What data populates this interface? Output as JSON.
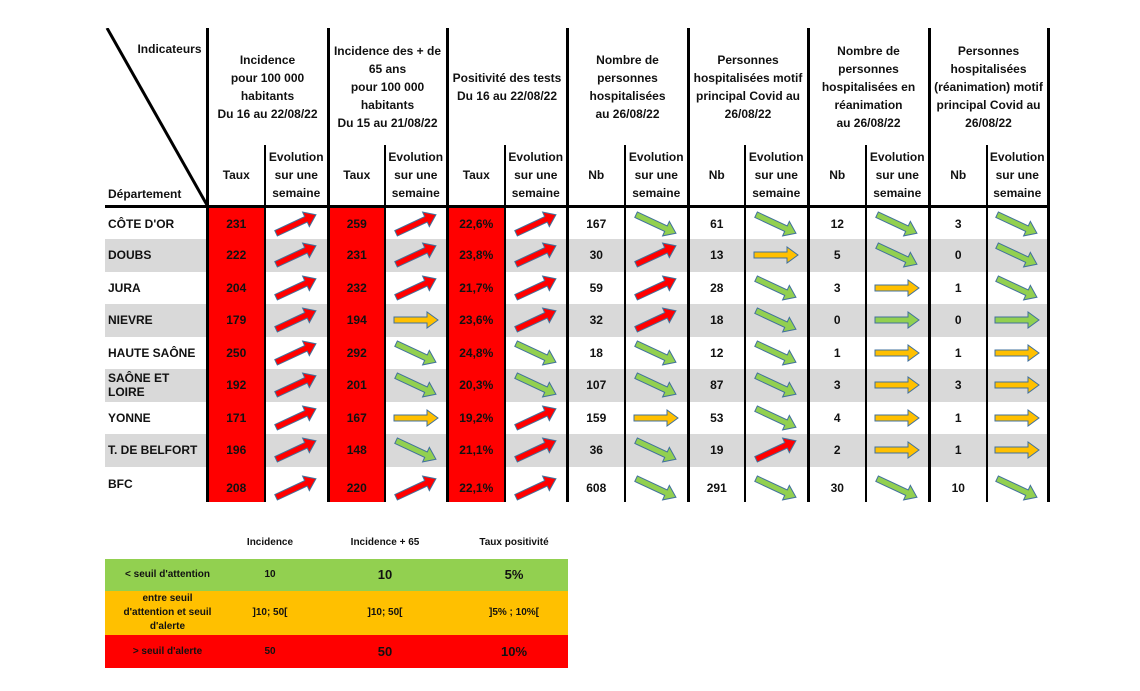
{
  "header": {
    "indicateurs": "Indicateurs",
    "departement": "Département",
    "groups": [
      {
        "title": [
          "Incidence",
          "pour 100 000",
          "habitants",
          "Du 16 au 22/08/22"
        ],
        "col1": "Taux",
        "col2": [
          "Evolution",
          "sur une",
          "semaine"
        ]
      },
      {
        "title": [
          "Incidence des + de",
          "65 ans",
          "pour 100 000",
          "habitants",
          "Du 15 au 21/08/22"
        ],
        "col1": "Taux",
        "col2": [
          "Evolution",
          "sur une",
          "semaine"
        ]
      },
      {
        "title": [
          "Positivité des tests",
          "Du 16 au 22/08/22"
        ],
        "col1": "Taux",
        "col2": [
          "Evolution",
          "sur une",
          "semaine"
        ]
      },
      {
        "title": [
          "Nombre de",
          "personnes",
          "hospitalisées",
          "au 26/08/22"
        ],
        "col1": "Nb",
        "col2": [
          "Evolution",
          "sur une",
          "semaine"
        ]
      },
      {
        "title": [
          "Personnes",
          "hospitalisées motif",
          "principal Covid au",
          "26/08/22"
        ],
        "col1": "Nb",
        "col2": [
          "Evolution",
          "sur une",
          "semaine"
        ]
      },
      {
        "title": [
          "Nombre de",
          "personnes",
          "hospitalisées en",
          "réanimation",
          "au 26/08/22"
        ],
        "col1": "Nb",
        "col2": [
          "Evolution",
          "sur une",
          "semaine"
        ]
      },
      {
        "title": [
          "Personnes",
          "hospitalisées",
          "(réanimation) motif",
          "principal Covid au",
          "26/08/22"
        ],
        "col1": "Nb",
        "col2": [
          "Evolution",
          "sur une",
          "semaine"
        ]
      }
    ]
  },
  "arrow_colors": {
    "up": "#ff0000",
    "down": "#92d050",
    "flat_yellow": "#ffc000",
    "flat_green": "#92d050",
    "outline": "#41719c"
  },
  "rows": [
    {
      "dept": "CÔTE D'OR",
      "cells": [
        [
          "231",
          "up"
        ],
        [
          "259",
          "up"
        ],
        [
          "22,6%",
          "up"
        ],
        [
          "167",
          "down"
        ],
        [
          "61",
          "down"
        ],
        [
          "12",
          "down"
        ],
        [
          "3",
          "down"
        ]
      ]
    },
    {
      "dept": "DOUBS",
      "cells": [
        [
          "222",
          "up"
        ],
        [
          "231",
          "up"
        ],
        [
          "23,8%",
          "up"
        ],
        [
          "30",
          "up"
        ],
        [
          "13",
          "flat_yellow"
        ],
        [
          "5",
          "down"
        ],
        [
          "0",
          "down"
        ]
      ]
    },
    {
      "dept": "JURA",
      "cells": [
        [
          "204",
          "up"
        ],
        [
          "232",
          "up"
        ],
        [
          "21,7%",
          "up"
        ],
        [
          "59",
          "up"
        ],
        [
          "28",
          "down"
        ],
        [
          "3",
          "flat_yellow"
        ],
        [
          "1",
          "down"
        ]
      ]
    },
    {
      "dept": "NIEVRE",
      "cells": [
        [
          "179",
          "up"
        ],
        [
          "194",
          "flat_yellow"
        ],
        [
          "23,6%",
          "up"
        ],
        [
          "32",
          "up"
        ],
        [
          "18",
          "down"
        ],
        [
          "0",
          "flat_green"
        ],
        [
          "0",
          "flat_green"
        ]
      ]
    },
    {
      "dept": "HAUTE SAÔNE",
      "cells": [
        [
          "250",
          "up"
        ],
        [
          "292",
          "down"
        ],
        [
          "24,8%",
          "down"
        ],
        [
          "18",
          "down"
        ],
        [
          "12",
          "down"
        ],
        [
          "1",
          "flat_yellow"
        ],
        [
          "1",
          "flat_yellow"
        ]
      ]
    },
    {
      "dept": "SAÔNE ET LOIRE",
      "cells": [
        [
          "192",
          "up"
        ],
        [
          "201",
          "down"
        ],
        [
          "20,3%",
          "down"
        ],
        [
          "107",
          "down"
        ],
        [
          "87",
          "down"
        ],
        [
          "3",
          "flat_yellow"
        ],
        [
          "3",
          "flat_yellow"
        ]
      ]
    },
    {
      "dept": "YONNE",
      "cells": [
        [
          "171",
          "up"
        ],
        [
          "167",
          "flat_yellow"
        ],
        [
          "19,2%",
          "up"
        ],
        [
          "159",
          "flat_yellow"
        ],
        [
          "53",
          "down"
        ],
        [
          "4",
          "flat_yellow"
        ],
        [
          "1",
          "flat_yellow"
        ]
      ]
    },
    {
      "dept": "T. DE BELFORT",
      "cells": [
        [
          "196",
          "up"
        ],
        [
          "148",
          "down"
        ],
        [
          "21,1%",
          "up"
        ],
        [
          "36",
          "down"
        ],
        [
          "19",
          "up"
        ],
        [
          "2",
          "flat_yellow"
        ],
        [
          "1",
          "flat_yellow"
        ]
      ]
    },
    {
      "dept": "BFC",
      "cells": [
        [
          "208",
          "up"
        ],
        [
          "220",
          "up"
        ],
        [
          "22,1%",
          "up"
        ],
        [
          "608",
          "down"
        ],
        [
          "291",
          "down"
        ],
        [
          "30",
          "down"
        ],
        [
          "10",
          "down"
        ]
      ]
    }
  ],
  "legend": {
    "headers": [
      "Incidence",
      "Incidence + 65",
      "Taux positivité"
    ],
    "rows": [
      {
        "label": [
          "< seuil d'attention"
        ],
        "values": [
          "10",
          "10",
          "5%"
        ],
        "color": "#92d050"
      },
      {
        "label": [
          "entre seuil",
          "d'attention et seuil",
          "d'alerte"
        ],
        "values": [
          "]10; 50[",
          "]10; 50[",
          "]5% ; 10%["
        ],
        "color": "#ffc000"
      },
      {
        "label": [
          "> seuil d'alerte"
        ],
        "values": [
          "50",
          "50",
          "10%"
        ],
        "color": "#ff0000"
      }
    ]
  }
}
